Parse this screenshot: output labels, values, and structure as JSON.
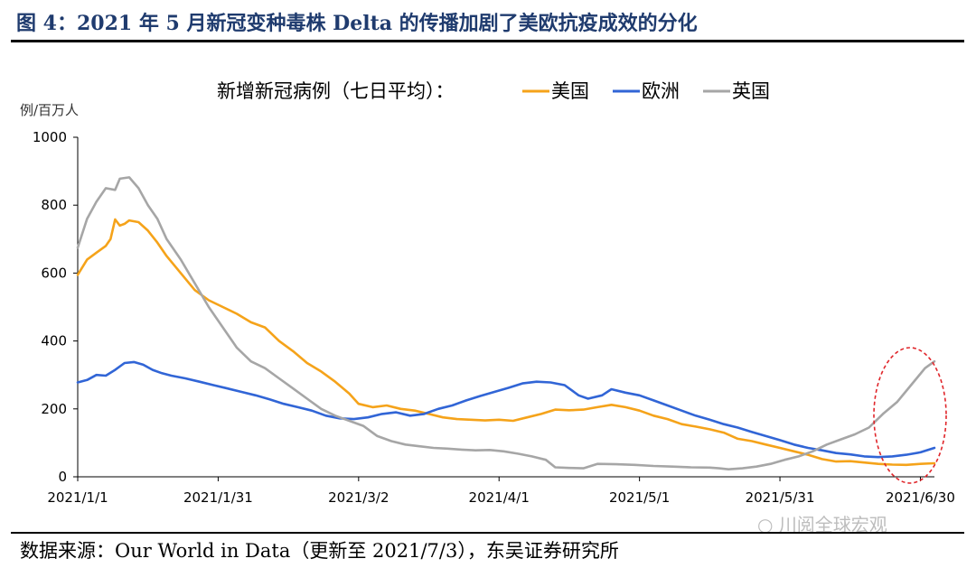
{
  "header": {
    "title": "图 4：2021 年 5 月新冠变种毒株 Delta 的传播加剧了美欧抗疫成效的分化"
  },
  "footer": {
    "source": "数据来源：Our World in Data（更新至 2021/7/3），东吴证券研究所",
    "watermark": "川阅全球宏观"
  },
  "chart_data": {
    "type": "line",
    "title": "新增新冠病例（七日平均）：",
    "ylabel": "例/百万人",
    "xlabel": "",
    "ylim": [
      0,
      1000
    ],
    "yticks": [
      0,
      200,
      400,
      600,
      800,
      1000
    ],
    "xrange": [
      "2021-01-01",
      "2021-07-03"
    ],
    "xticks": [
      "2021/1/1",
      "2021/1/31",
      "2021/3/2",
      "2021/4/1",
      "2021/5/1",
      "2021/5/31",
      "2021/6/30"
    ],
    "grid": false,
    "legend": "top",
    "annotation": "red dashed ellipse around June-end rise",
    "series": [
      {
        "name": "美国",
        "color": "#f5a31a",
        "points": [
          [
            "2021-01-01",
            595
          ],
          [
            "2021-01-03",
            640
          ],
          [
            "2021-01-05",
            660
          ],
          [
            "2021-01-07",
            680
          ],
          [
            "2021-01-08",
            700
          ],
          [
            "2021-01-09",
            758
          ],
          [
            "2021-01-10",
            740
          ],
          [
            "2021-01-11",
            745
          ],
          [
            "2021-01-12",
            755
          ],
          [
            "2021-01-14",
            750
          ],
          [
            "2021-01-16",
            725
          ],
          [
            "2021-01-18",
            690
          ],
          [
            "2021-01-20",
            650
          ],
          [
            "2021-01-23",
            600
          ],
          [
            "2021-01-26",
            550
          ],
          [
            "2021-01-29",
            520
          ],
          [
            "2021-02-01",
            500
          ],
          [
            "2021-02-04",
            480
          ],
          [
            "2021-02-07",
            455
          ],
          [
            "2021-02-10",
            440
          ],
          [
            "2021-02-13",
            400
          ],
          [
            "2021-02-16",
            370
          ],
          [
            "2021-02-19",
            335
          ],
          [
            "2021-02-22",
            310
          ],
          [
            "2021-02-25",
            280
          ],
          [
            "2021-02-28",
            245
          ],
          [
            "2021-03-02",
            215
          ],
          [
            "2021-03-05",
            205
          ],
          [
            "2021-03-08",
            210
          ],
          [
            "2021-03-11",
            200
          ],
          [
            "2021-03-14",
            195
          ],
          [
            "2021-03-17",
            185
          ],
          [
            "2021-03-20",
            175
          ],
          [
            "2021-03-23",
            170
          ],
          [
            "2021-03-26",
            168
          ],
          [
            "2021-03-29",
            166
          ],
          [
            "2021-04-01",
            168
          ],
          [
            "2021-04-04",
            165
          ],
          [
            "2021-04-07",
            175
          ],
          [
            "2021-04-10",
            185
          ],
          [
            "2021-04-13",
            198
          ],
          [
            "2021-04-16",
            196
          ],
          [
            "2021-04-19",
            198
          ],
          [
            "2021-04-22",
            205
          ],
          [
            "2021-04-25",
            212
          ],
          [
            "2021-04-28",
            205
          ],
          [
            "2021-05-01",
            195
          ],
          [
            "2021-05-04",
            180
          ],
          [
            "2021-05-07",
            170
          ],
          [
            "2021-05-10",
            155
          ],
          [
            "2021-05-13",
            148
          ],
          [
            "2021-05-16",
            140
          ],
          [
            "2021-05-19",
            130
          ],
          [
            "2021-05-22",
            112
          ],
          [
            "2021-05-25",
            105
          ],
          [
            "2021-05-28",
            95
          ],
          [
            "2021-05-31",
            85
          ],
          [
            "2021-06-03",
            75
          ],
          [
            "2021-06-06",
            65
          ],
          [
            "2021-06-09",
            52
          ],
          [
            "2021-06-12",
            45
          ],
          [
            "2021-06-15",
            46
          ],
          [
            "2021-06-18",
            42
          ],
          [
            "2021-06-21",
            38
          ],
          [
            "2021-06-24",
            36
          ],
          [
            "2021-06-27",
            35
          ],
          [
            "2021-06-30",
            38
          ],
          [
            "2021-07-03",
            40
          ]
        ]
      },
      {
        "name": "欧洲",
        "color": "#3165d6",
        "points": [
          [
            "2021-01-01",
            278
          ],
          [
            "2021-01-03",
            285
          ],
          [
            "2021-01-05",
            300
          ],
          [
            "2021-01-07",
            298
          ],
          [
            "2021-01-09",
            315
          ],
          [
            "2021-01-11",
            335
          ],
          [
            "2021-01-13",
            338
          ],
          [
            "2021-01-15",
            330
          ],
          [
            "2021-01-17",
            315
          ],
          [
            "2021-01-19",
            305
          ],
          [
            "2021-01-21",
            298
          ],
          [
            "2021-01-24",
            290
          ],
          [
            "2021-01-27",
            280
          ],
          [
            "2021-01-30",
            270
          ],
          [
            "2021-02-02",
            260
          ],
          [
            "2021-02-05",
            250
          ],
          [
            "2021-02-08",
            240
          ],
          [
            "2021-02-11",
            228
          ],
          [
            "2021-02-14",
            215
          ],
          [
            "2021-02-17",
            205
          ],
          [
            "2021-02-20",
            195
          ],
          [
            "2021-02-23",
            180
          ],
          [
            "2021-02-26",
            172
          ],
          [
            "2021-03-01",
            170
          ],
          [
            "2021-03-04",
            175
          ],
          [
            "2021-03-07",
            185
          ],
          [
            "2021-03-10",
            190
          ],
          [
            "2021-03-13",
            180
          ],
          [
            "2021-03-16",
            185
          ],
          [
            "2021-03-19",
            200
          ],
          [
            "2021-03-22",
            210
          ],
          [
            "2021-03-25",
            225
          ],
          [
            "2021-03-28",
            238
          ],
          [
            "2021-03-31",
            250
          ],
          [
            "2021-04-03",
            262
          ],
          [
            "2021-04-06",
            275
          ],
          [
            "2021-04-09",
            280
          ],
          [
            "2021-04-12",
            278
          ],
          [
            "2021-04-15",
            270
          ],
          [
            "2021-04-18",
            240
          ],
          [
            "2021-04-20",
            230
          ],
          [
            "2021-04-23",
            240
          ],
          [
            "2021-04-25",
            258
          ],
          [
            "2021-04-28",
            248
          ],
          [
            "2021-05-01",
            240
          ],
          [
            "2021-05-04",
            225
          ],
          [
            "2021-05-07",
            210
          ],
          [
            "2021-05-10",
            195
          ],
          [
            "2021-05-13",
            180
          ],
          [
            "2021-05-16",
            168
          ],
          [
            "2021-05-19",
            155
          ],
          [
            "2021-05-22",
            145
          ],
          [
            "2021-05-25",
            132
          ],
          [
            "2021-05-28",
            120
          ],
          [
            "2021-05-31",
            108
          ],
          [
            "2021-06-03",
            95
          ],
          [
            "2021-06-06",
            85
          ],
          [
            "2021-06-09",
            78
          ],
          [
            "2021-06-12",
            70
          ],
          [
            "2021-06-15",
            66
          ],
          [
            "2021-06-18",
            60
          ],
          [
            "2021-06-21",
            58
          ],
          [
            "2021-06-24",
            60
          ],
          [
            "2021-06-27",
            65
          ],
          [
            "2021-06-30",
            72
          ],
          [
            "2021-07-03",
            85
          ]
        ]
      },
      {
        "name": "英国",
        "color": "#a6a6a6",
        "points": [
          [
            "2021-01-01",
            675
          ],
          [
            "2021-01-03",
            760
          ],
          [
            "2021-01-05",
            810
          ],
          [
            "2021-01-07",
            850
          ],
          [
            "2021-01-09",
            845
          ],
          [
            "2021-01-10",
            878
          ],
          [
            "2021-01-12",
            882
          ],
          [
            "2021-01-14",
            850
          ],
          [
            "2021-01-16",
            800
          ],
          [
            "2021-01-18",
            760
          ],
          [
            "2021-01-20",
            700
          ],
          [
            "2021-01-23",
            640
          ],
          [
            "2021-01-26",
            570
          ],
          [
            "2021-01-29",
            500
          ],
          [
            "2021-02-01",
            440
          ],
          [
            "2021-02-04",
            380
          ],
          [
            "2021-02-07",
            340
          ],
          [
            "2021-02-10",
            320
          ],
          [
            "2021-02-13",
            290
          ],
          [
            "2021-02-16",
            260
          ],
          [
            "2021-02-19",
            230
          ],
          [
            "2021-02-22",
            200
          ],
          [
            "2021-02-25",
            180
          ],
          [
            "2021-02-28",
            165
          ],
          [
            "2021-03-03",
            150
          ],
          [
            "2021-03-06",
            120
          ],
          [
            "2021-03-09",
            105
          ],
          [
            "2021-03-12",
            95
          ],
          [
            "2021-03-15",
            90
          ],
          [
            "2021-03-18",
            85
          ],
          [
            "2021-03-21",
            83
          ],
          [
            "2021-03-24",
            80
          ],
          [
            "2021-03-27",
            78
          ],
          [
            "2021-03-30",
            79
          ],
          [
            "2021-04-02",
            75
          ],
          [
            "2021-04-05",
            68
          ],
          [
            "2021-04-08",
            60
          ],
          [
            "2021-04-11",
            50
          ],
          [
            "2021-04-13",
            28
          ],
          [
            "2021-04-16",
            26
          ],
          [
            "2021-04-19",
            25
          ],
          [
            "2021-04-22",
            38
          ],
          [
            "2021-04-26",
            37
          ],
          [
            "2021-04-30",
            35
          ],
          [
            "2021-05-04",
            32
          ],
          [
            "2021-05-08",
            30
          ],
          [
            "2021-05-12",
            28
          ],
          [
            "2021-05-16",
            27
          ],
          [
            "2021-05-18",
            25
          ],
          [
            "2021-05-20",
            22
          ],
          [
            "2021-05-23",
            25
          ],
          [
            "2021-05-26",
            30
          ],
          [
            "2021-05-29",
            38
          ],
          [
            "2021-06-01",
            50
          ],
          [
            "2021-06-04",
            60
          ],
          [
            "2021-06-07",
            75
          ],
          [
            "2021-06-10",
            95
          ],
          [
            "2021-06-13",
            110
          ],
          [
            "2021-06-16",
            125
          ],
          [
            "2021-06-19",
            145
          ],
          [
            "2021-06-22",
            185
          ],
          [
            "2021-06-25",
            220
          ],
          [
            "2021-06-28",
            270
          ],
          [
            "2021-07-01",
            320
          ],
          [
            "2021-07-03",
            340
          ]
        ]
      }
    ]
  }
}
